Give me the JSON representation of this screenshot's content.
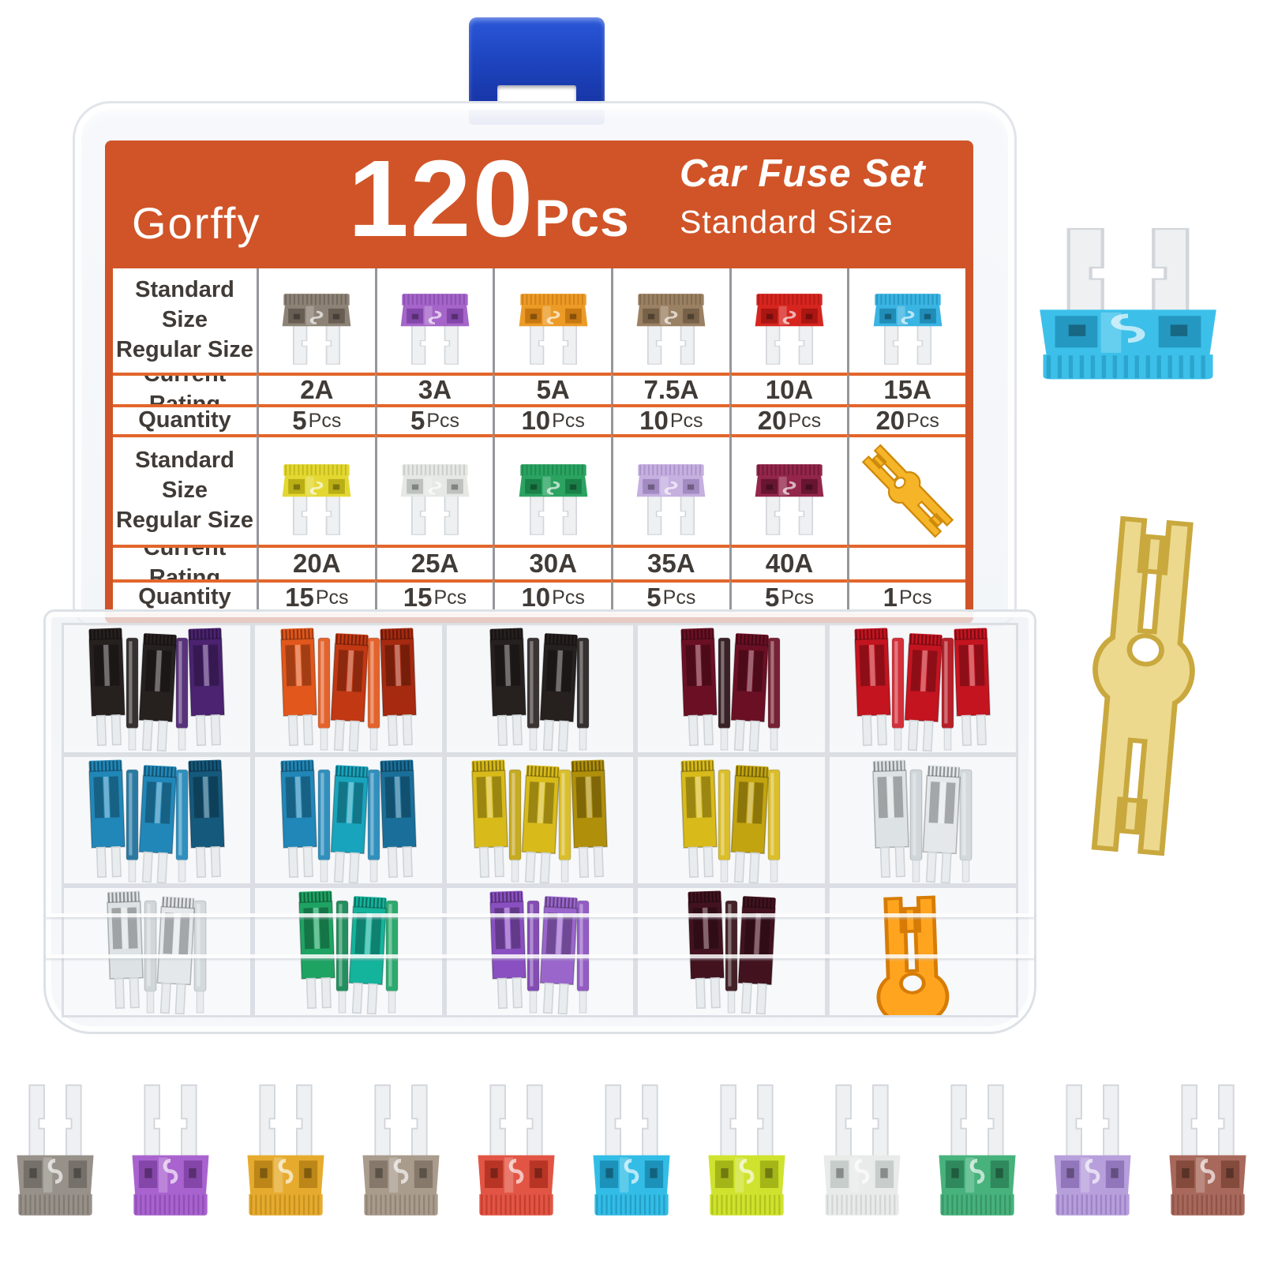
{
  "product": {
    "brand": "Gorffy",
    "count": "120",
    "count_unit": "Pcs",
    "title": "Car Fuse Set",
    "subtitle": "Standard Size"
  },
  "colors": {
    "header_bg": "#d05428",
    "row_line": "#e2662c",
    "column_line": "#95979b",
    "table_text": "#403b37",
    "latch_blue": "#1d43bd"
  },
  "table": {
    "size_label_line1": "Standard Size",
    "size_label_line2": "Regular Size",
    "current_rating_label": "Current Rating",
    "quantity_label": "Quantity",
    "groups": [
      {
        "fuses": [
          {
            "name": "gray-fuse",
            "rating": "2A",
            "qty": "5",
            "qty_unit": "Pcs",
            "color": "#8d8276",
            "dark": "#5f564c"
          },
          {
            "name": "violet-fuse",
            "rating": "3A",
            "qty": "5",
            "qty_unit": "Pcs",
            "color": "#a565c9",
            "dark": "#7a3fa2"
          },
          {
            "name": "orange-fuse",
            "rating": "5A",
            "qty": "10",
            "qty_unit": "Pcs",
            "color": "#eb9b26",
            "dark": "#c0700e"
          },
          {
            "name": "brown-fuse",
            "rating": "7.5A",
            "qty": "10",
            "qty_unit": "Pcs",
            "color": "#9b8163",
            "dark": "#6f5a42"
          },
          {
            "name": "red-fuse",
            "rating": "10A",
            "qty": "20",
            "qty_unit": "Pcs",
            "color": "#d6251f",
            "dark": "#a01310"
          },
          {
            "name": "blue-fuse",
            "rating": "15A",
            "qty": "20",
            "qty_unit": "Pcs",
            "color": "#3ab4e2",
            "dark": "#1b84ad"
          }
        ]
      },
      {
        "fuses": [
          {
            "name": "yellow-fuse",
            "rating": "20A",
            "qty": "15",
            "qty_unit": "Pcs",
            "color": "#e3d832",
            "dark": "#b0a50f"
          },
          {
            "name": "clear-fuse",
            "rating": "25A",
            "qty": "15",
            "qty_unit": "Pcs",
            "color": "#e6e8e4",
            "dark": "#b4bab6"
          },
          {
            "name": "green-fuse",
            "rating": "30A",
            "qty": "10",
            "qty_unit": "Pcs",
            "color": "#2ba361",
            "dark": "#177a44"
          },
          {
            "name": "lavender-fuse",
            "rating": "35A",
            "qty": "5",
            "qty_unit": "Pcs",
            "color": "#c5b0e0",
            "dark": "#9a82ba"
          },
          {
            "name": "maroon-fuse",
            "rating": "40A",
            "qty": "5",
            "qty_unit": "Pcs",
            "color": "#93264a",
            "dark": "#5e122c"
          }
        ],
        "puller": {
          "name": "fuse-puller",
          "qty": "1",
          "qty_unit": "Pcs",
          "color": "#f6b528",
          "dark": "#cf8a0a"
        }
      }
    ]
  },
  "box": {
    "compartments": [
      {
        "name": "black-and-purple-fuses",
        "colors": [
          "#26201f",
          "#26201f",
          "#26201f",
          "#4b2370",
          "#4b2370"
        ]
      },
      {
        "name": "orange-and-red-fuses",
        "colors": [
          "#e2571c",
          "#e2571c",
          "#c23812",
          "#e2571c",
          "#a62a10"
        ]
      },
      {
        "name": "black-fuses",
        "colors": [
          "#26201f",
          "#2c2423",
          "#26201f",
          "#26201f"
        ]
      },
      {
        "name": "dark-red-fuses",
        "colors": [
          "#6b1024",
          "#2a1016",
          "#6b1024",
          "#6b1024"
        ]
      },
      {
        "name": "red-fuses",
        "colors": [
          "#c41420",
          "#d0202a",
          "#c41420",
          "#b00e18",
          "#c41420"
        ]
      },
      {
        "name": "blue-fuses",
        "colors": [
          "#2187b8",
          "#1a6f9a",
          "#2187b8",
          "#2187b8",
          "#15597c"
        ]
      },
      {
        "name": "blue-fuses-2",
        "colors": [
          "#2187b8",
          "#2187b8",
          "#19a4bd",
          "#2187b8",
          "#1a6f9a"
        ]
      },
      {
        "name": "yellow-fuses",
        "colors": [
          "#d8ba1a",
          "#c2a410",
          "#d8ba1a",
          "#d8ba1a",
          "#b08f0a"
        ]
      },
      {
        "name": "yellow-fuses-2",
        "colors": [
          "#d8ba1a",
          "#d8ba1a",
          "#c2a410",
          "#d8ba1a"
        ]
      },
      {
        "name": "clear-fuses",
        "colors": [
          "#dde2e4",
          "#cdd4d7",
          "#e4e8ea",
          "#d2d8da"
        ]
      },
      {
        "name": "clear-fuses-2",
        "colors": [
          "#dde2e4",
          "#cdd4d7",
          "#e4e8ea",
          "#d2d8da"
        ]
      },
      {
        "name": "green-fuses",
        "colors": [
          "#1ea363",
          "#138552",
          "#14b39b",
          "#1ea363"
        ]
      },
      {
        "name": "purple-fuses",
        "colors": [
          "#8a4fc0",
          "#7a3fae",
          "#9a66cc",
          "#8a4fc0"
        ]
      },
      {
        "name": "dark-maroon-fuses",
        "colors": [
          "#42131f",
          "#351016",
          "#42131f"
        ]
      },
      {
        "name": "puller-compartment",
        "colors": []
      }
    ],
    "puller": {
      "name": "fuse-puller-in-box",
      "color": "#ffa41e",
      "dark": "#d67c06"
    }
  },
  "side_items": {
    "big_fuse": {
      "name": "blue-fuse-large",
      "color": "#3cc0ea",
      "dark": "#1e8fb8"
    },
    "big_puller": {
      "name": "fuse-puller-large",
      "color": "#ecd98e",
      "dark": "#c9a83e"
    }
  },
  "bottom_fuses": [
    {
      "name": "gray-fuse",
      "color": "#97918a",
      "dark": "#6e6962"
    },
    {
      "name": "purple-fuse",
      "color": "#a963cf",
      "dark": "#7c3fa0"
    },
    {
      "name": "gold-fuse",
      "color": "#e6ab2e",
      "dark": "#b27f14"
    },
    {
      "name": "taupe-fuse",
      "color": "#a99c8d",
      "dark": "#7e7264"
    },
    {
      "name": "red-fuse",
      "color": "#e25544",
      "dark": "#ae2e1f"
    },
    {
      "name": "cyan-fuse",
      "color": "#33bde6",
      "dark": "#1787ae"
    },
    {
      "name": "lime-fuse",
      "color": "#cfe32e",
      "dark": "#9aac12"
    },
    {
      "name": "clear-fuse",
      "color": "#e8ebe9",
      "dark": "#bfc6c4"
    },
    {
      "name": "green-fuse",
      "color": "#47b27c",
      "dark": "#2a8056"
    },
    {
      "name": "lavender-fuse",
      "color": "#b79fdc",
      "dark": "#8a6cb4"
    },
    {
      "name": "brown-fuse",
      "color": "#a8695c",
      "dark": "#7c4336"
    }
  ]
}
